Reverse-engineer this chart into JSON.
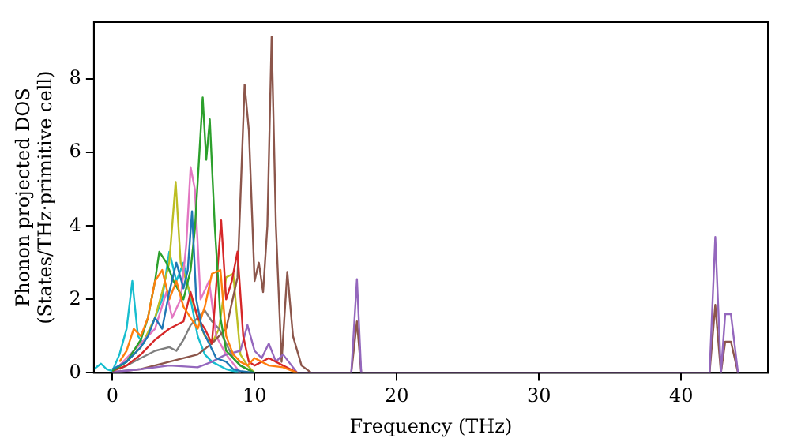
{
  "chart_data": {
    "type": "line",
    "xlabel": "Frequency (THz)",
    "ylabel": "Phonon projected DOS\n(States/THz·primitive cell)",
    "xlim": [
      -1.3,
      46.1
    ],
    "ylim": [
      0,
      9.55
    ],
    "xticks": [
      0,
      10,
      20,
      30,
      40
    ],
    "yticks": [
      0,
      2,
      4,
      6,
      8
    ],
    "grid": false,
    "legend": false,
    "marker": "none",
    "line_style": "solid",
    "series": [
      {
        "color": "#1f77b4",
        "x": [
          0,
          1,
          2,
          2.5,
          3,
          3.5,
          4,
          4.5,
          5,
          5.3,
          5.6,
          5.9,
          6.3,
          6.8,
          7.3,
          8,
          8.5,
          9,
          10
        ],
        "values": [
          0.1,
          0.3,
          0.7,
          1.0,
          1.5,
          1.2,
          2.2,
          3.0,
          2.3,
          2.8,
          4.4,
          2.0,
          1.2,
          0.8,
          0.4,
          0.3,
          0.1,
          0.05,
          0
        ]
      },
      {
        "color": "#ff7f0e",
        "x": [
          0.5,
          1,
          1.5,
          2,
          2.5,
          3,
          3.5,
          4,
          4.5,
          5,
          5.5,
          6,
          6.5,
          7,
          7.6,
          8,
          8.5,
          9,
          9.5,
          10,
          11,
          12,
          13
        ],
        "values": [
          0.3,
          0.6,
          1.2,
          1.0,
          1.5,
          2.5,
          2.8,
          2.0,
          2.5,
          1.8,
          1.5,
          1.2,
          1.8,
          2.7,
          2.8,
          1.0,
          0.5,
          0.3,
          0.2,
          0.4,
          0.2,
          0.15,
          0
        ]
      },
      {
        "color": "#2ca02c",
        "x": [
          0,
          1,
          2,
          2.5,
          3,
          3.3,
          3.8,
          4.3,
          5,
          5.5,
          5.8,
          6.35,
          6.6,
          6.85,
          7.2,
          7.6,
          8,
          9,
          10
        ],
        "values": [
          0.05,
          0.3,
          0.9,
          1.5,
          2.5,
          3.3,
          3.0,
          2.5,
          2.0,
          2.8,
          3.9,
          7.5,
          5.8,
          6.9,
          4.0,
          1.5,
          0.6,
          0.2,
          0
        ]
      },
      {
        "color": "#d62728",
        "x": [
          0,
          1,
          2,
          3,
          4,
          5,
          5.5,
          6,
          6.5,
          7,
          7.65,
          8,
          8.4,
          8.8,
          9.2,
          9.6,
          10,
          11,
          12,
          13
        ],
        "values": [
          0.05,
          0.2,
          0.5,
          0.9,
          1.2,
          1.4,
          2.2,
          1.5,
          1.2,
          0.8,
          4.15,
          2.0,
          2.5,
          3.3,
          1.0,
          0.3,
          0.2,
          0.4,
          0.2,
          0
        ]
      },
      {
        "color": "#9467bd",
        "x": [
          0,
          2,
          4,
          6,
          7,
          8,
          9,
          9.5,
          10,
          10.5,
          11,
          11.5,
          12,
          13,
          16.8,
          17.2,
          17.5,
          42,
          42.4,
          42.8,
          43.1,
          43.5,
          44
        ],
        "values": [
          0.02,
          0.1,
          0.2,
          0.15,
          0.3,
          0.5,
          0.6,
          1.3,
          0.6,
          0.4,
          0.8,
          0.3,
          0.5,
          0,
          0,
          2.55,
          0,
          0,
          3.7,
          0,
          1.6,
          1.6,
          0
        ]
      },
      {
        "color": "#8c564b",
        "x": [
          0,
          2,
          4,
          6,
          7,
          8,
          8.8,
          9.3,
          9.6,
          10,
          10.3,
          10.6,
          10.9,
          11.2,
          11.5,
          11.9,
          12.3,
          12.7,
          13.3,
          14,
          16.8,
          17.2,
          17.5,
          42,
          42.4,
          42.8,
          43.1,
          43.5,
          44
        ],
        "values": [
          0.02,
          0.1,
          0.3,
          0.5,
          0.8,
          1.2,
          2.6,
          7.85,
          6.6,
          2.5,
          3.0,
          2.2,
          4.0,
          9.15,
          4.0,
          0.3,
          2.75,
          1.0,
          0.2,
          0,
          0,
          1.4,
          0,
          0,
          1.85,
          0,
          0.85,
          0.85,
          0
        ]
      },
      {
        "color": "#e377c2",
        "x": [
          0.5,
          1,
          2,
          3,
          3.8,
          4.2,
          4.8,
          5.2,
          5.5,
          5.8,
          6.2,
          6.8,
          7.3,
          8,
          9
        ],
        "values": [
          0.2,
          0.4,
          0.8,
          1.2,
          2.2,
          1.5,
          2.0,
          3.5,
          5.6,
          5.0,
          2.0,
          2.5,
          1.0,
          0.5,
          0
        ]
      },
      {
        "color": "#7f7f7f",
        "x": [
          0.5,
          1,
          2,
          3,
          4,
          4.5,
          5,
          5.5,
          6,
          6.5,
          7,
          7.5,
          8,
          8.5,
          9,
          10
        ],
        "values": [
          0.1,
          0.2,
          0.4,
          0.6,
          0.7,
          0.6,
          0.9,
          1.3,
          1.5,
          1.7,
          1.4,
          1.2,
          0.8,
          0.4,
          0.2,
          0
        ]
      },
      {
        "color": "#bcbd22",
        "x": [
          1,
          2,
          3,
          3.5,
          4,
          4.45,
          4.8,
          5.2,
          5.6,
          6,
          6.5,
          7,
          7.5,
          8,
          8.5,
          9,
          9.5,
          10
        ],
        "values": [
          0.3,
          0.7,
          1.5,
          2.2,
          3.0,
          5.2,
          3.0,
          2.5,
          2.0,
          1.5,
          1.0,
          0.8,
          1.2,
          2.6,
          2.7,
          0.5,
          0.2,
          0
        ]
      },
      {
        "color": "#17becf",
        "x": [
          -1.3,
          -0.8,
          -0.4,
          0,
          0.5,
          1,
          1.4,
          1.8,
          2.2,
          3,
          3.5,
          4,
          4.5,
          5,
          5.5,
          6,
          6.5,
          7,
          8,
          9
        ],
        "values": [
          0.1,
          0.25,
          0.1,
          0.05,
          0.5,
          1.2,
          2.5,
          1.0,
          0.8,
          1.5,
          2.0,
          3.3,
          2.5,
          3.0,
          2.0,
          1.0,
          0.5,
          0.3,
          0.1,
          0
        ]
      }
    ]
  }
}
